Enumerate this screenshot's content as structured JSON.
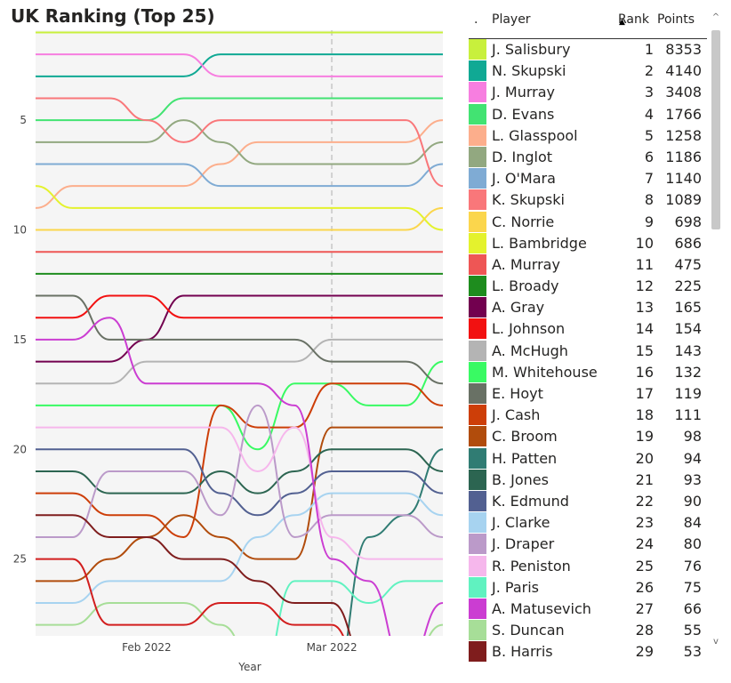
{
  "title": "UK Ranking (Top 25)",
  "chart_data": {
    "type": "line",
    "title": "UK Ranking (Top 25)",
    "xlabel": "Year",
    "ylabel": "",
    "x_tick_labels": [
      "Feb 2022",
      "Mar 2022"
    ],
    "y_ticks": [
      5,
      10,
      15,
      20,
      25
    ],
    "y_reversed": true,
    "ylim": [
      0.9,
      28.5
    ],
    "reference_line_label": "Mar 2022",
    "x": [
      0,
      1,
      2,
      3,
      4,
      5,
      6,
      7,
      8,
      9,
      10,
      11
    ],
    "series": [
      {
        "name": "J. Salisbury",
        "color": "#c8f03c",
        "values": [
          1,
          1,
          1,
          1,
          1,
          1,
          1,
          1,
          1,
          1,
          1,
          1
        ]
      },
      {
        "name": "N. Skupski",
        "color": "#10a994",
        "values": [
          3,
          3,
          3,
          3,
          3,
          2,
          2,
          2,
          2,
          2,
          2,
          2
        ]
      },
      {
        "name": "J. Murray",
        "color": "#f77ee0",
        "values": [
          2,
          2,
          2,
          2,
          2,
          3,
          3,
          3,
          3,
          3,
          3,
          3
        ]
      },
      {
        "name": "D. Evans",
        "color": "#42e372",
        "values": [
          5,
          5,
          5,
          5,
          4,
          4,
          4,
          4,
          4,
          4,
          4,
          4
        ]
      },
      {
        "name": "L. Glasspool",
        "color": "#fcae8c",
        "values": [
          9,
          8,
          8,
          8,
          8,
          7,
          6,
          6,
          6,
          6,
          6,
          5
        ]
      },
      {
        "name": "D. Inglot",
        "color": "#92a880",
        "values": [
          6,
          6,
          6,
          6,
          5,
          6,
          7,
          7,
          7,
          7,
          7,
          6
        ]
      },
      {
        "name": "J. O'Mara",
        "color": "#7fabd4",
        "values": [
          7,
          7,
          7,
          7,
          7,
          8,
          8,
          8,
          8,
          8,
          8,
          7
        ]
      },
      {
        "name": "K. Skupski",
        "color": "#f9777a",
        "values": [
          4,
          4,
          4,
          5,
          6,
          5,
          5,
          5,
          5,
          5,
          5,
          8
        ]
      },
      {
        "name": "C. Norrie",
        "color": "#fbd64c",
        "values": [
          10,
          10,
          10,
          10,
          10,
          10,
          10,
          10,
          10,
          10,
          10,
          9
        ]
      },
      {
        "name": "L. Bambridge",
        "color": "#e4f22d",
        "values": [
          8,
          9,
          9,
          9,
          9,
          9,
          9,
          9,
          9,
          9,
          9,
          10
        ]
      },
      {
        "name": "A. Murray",
        "color": "#ee5655",
        "values": [
          11,
          11,
          11,
          11,
          11,
          11,
          11,
          11,
          11,
          11,
          11,
          11
        ]
      },
      {
        "name": "L. Broady",
        "color": "#1e8c1e",
        "values": [
          12,
          12,
          12,
          12,
          12,
          12,
          12,
          12,
          12,
          12,
          12,
          12
        ]
      },
      {
        "name": "A. Gray",
        "color": "#72004f",
        "values": [
          16,
          16,
          16,
          15,
          13,
          13,
          13,
          13,
          13,
          13,
          13,
          13
        ]
      },
      {
        "name": "L. Johnson",
        "color": "#f21111",
        "values": [
          14,
          14,
          13,
          13,
          14,
          14,
          14,
          14,
          14,
          14,
          14,
          14
        ]
      },
      {
        "name": "A. McHugh",
        "color": "#b4b4b4",
        "values": [
          17,
          17,
          17,
          16,
          16,
          16,
          16,
          16,
          15,
          15,
          15,
          15
        ]
      },
      {
        "name": "M. Whitehouse",
        "color": "#39fa63",
        "values": [
          18,
          18,
          18,
          18,
          18,
          18,
          20,
          17,
          17,
          18,
          18,
          16
        ]
      },
      {
        "name": "E. Hoyt",
        "color": "#697165",
        "values": [
          13,
          13,
          15,
          15,
          15,
          15,
          15,
          15,
          16,
          16,
          16,
          17
        ]
      },
      {
        "name": "J. Cash",
        "color": "#cd3e08",
        "values": [
          22,
          22,
          23,
          23,
          24,
          18,
          19,
          19,
          17,
          17,
          17,
          18
        ]
      },
      {
        "name": "C. Broom",
        "color": "#b14c0c",
        "values": [
          26,
          26,
          25,
          24,
          23,
          24,
          25,
          25,
          19,
          19,
          19,
          19
        ]
      },
      {
        "name": "H. Patten",
        "color": "#307c73",
        "values": [
          31,
          31,
          31,
          31,
          31,
          31,
          31,
          31,
          31,
          24,
          23,
          20
        ]
      },
      {
        "name": "B. Jones",
        "color": "#2c6551",
        "values": [
          21,
          21,
          22,
          22,
          22,
          21,
          22,
          21,
          20,
          20,
          20,
          21
        ]
      },
      {
        "name": "K. Edmund",
        "color": "#526091",
        "values": [
          20,
          20,
          20,
          20,
          20,
          22,
          23,
          22,
          21,
          21,
          21,
          22
        ]
      },
      {
        "name": "J. Clarke",
        "color": "#a7d3f0",
        "values": [
          27,
          27,
          26,
          26,
          26,
          26,
          24,
          23,
          22,
          22,
          22,
          23
        ]
      },
      {
        "name": "J. Draper",
        "color": "#bb9ac9",
        "values": [
          24,
          24,
          21,
          21,
          21,
          23,
          18,
          24,
          23,
          23,
          23,
          24
        ]
      },
      {
        "name": "R. Peniston",
        "color": "#f6b7ec",
        "values": [
          19,
          19,
          19,
          19,
          19,
          19,
          21,
          19,
          24,
          25,
          25,
          25
        ]
      },
      {
        "name": "J. Paris",
        "color": "#60f2c0",
        "values": [
          31,
          31,
          31,
          31,
          31,
          31,
          31,
          26,
          26,
          27,
          26,
          26
        ]
      },
      {
        "name": "A. Matusevich",
        "color": "#cb3dd2",
        "values": [
          15,
          15,
          14,
          17,
          17,
          17,
          17,
          18,
          25,
          26,
          30,
          27
        ]
      },
      {
        "name": "S. Duncan",
        "color": "#a7de98",
        "values": [
          28,
          28,
          27,
          27,
          27,
          28,
          30,
          30,
          30,
          30,
          30,
          28
        ]
      },
      {
        "name": "B. Harris",
        "color": "#7f1d1d",
        "values": [
          23,
          23,
          24,
          24,
          25,
          25,
          26,
          27,
          27,
          30,
          30,
          30
        ]
      },
      {
        "name": "",
        "color": "#d21e1e",
        "values": [
          25,
          25,
          28,
          28,
          28,
          27,
          27,
          28,
          28,
          31,
          31,
          31
        ]
      }
    ]
  },
  "table": {
    "columns": [
      ".",
      "Player",
      "Rank",
      "Points"
    ],
    "rows": [
      {
        "color": "#c8f03c",
        "player": "J. Salisbury",
        "rank": "1",
        "points": "8353"
      },
      {
        "color": "#10a994",
        "player": "N. Skupski",
        "rank": "2",
        "points": "4140"
      },
      {
        "color": "#f77ee0",
        "player": "J. Murray",
        "rank": "3",
        "points": "3408"
      },
      {
        "color": "#42e372",
        "player": "D. Evans",
        "rank": "4",
        "points": "1766"
      },
      {
        "color": "#fcae8c",
        "player": "L. Glasspool",
        "rank": "5",
        "points": "1258"
      },
      {
        "color": "#92a880",
        "player": "D. Inglot",
        "rank": "6",
        "points": "1186"
      },
      {
        "color": "#7fabd4",
        "player": "J. O'Mara",
        "rank": "7",
        "points": "1140"
      },
      {
        "color": "#f9777a",
        "player": "K. Skupski",
        "rank": "8",
        "points": "1089"
      },
      {
        "color": "#fbd64c",
        "player": "C. Norrie",
        "rank": "9",
        "points": "698"
      },
      {
        "color": "#e4f22d",
        "player": "L. Bambridge",
        "rank": "10",
        "points": "686"
      },
      {
        "color": "#ee5655",
        "player": "A. Murray",
        "rank": "11",
        "points": "475"
      },
      {
        "color": "#1e8c1e",
        "player": "L. Broady",
        "rank": "12",
        "points": "225"
      },
      {
        "color": "#72004f",
        "player": "A. Gray",
        "rank": "13",
        "points": "165"
      },
      {
        "color": "#f21111",
        "player": "L. Johnson",
        "rank": "14",
        "points": "154"
      },
      {
        "color": "#b4b4b4",
        "player": "A. McHugh",
        "rank": "15",
        "points": "143"
      },
      {
        "color": "#39fa63",
        "player": "M. Whitehouse",
        "rank": "16",
        "points": "132"
      },
      {
        "color": "#697165",
        "player": "E. Hoyt",
        "rank": "17",
        "points": "119"
      },
      {
        "color": "#cd3e08",
        "player": "J. Cash",
        "rank": "18",
        "points": "111"
      },
      {
        "color": "#b14c0c",
        "player": "C. Broom",
        "rank": "19",
        "points": "98"
      },
      {
        "color": "#307c73",
        "player": "H. Patten",
        "rank": "20",
        "points": "94"
      },
      {
        "color": "#2c6551",
        "player": "B. Jones",
        "rank": "21",
        "points": "93"
      },
      {
        "color": "#526091",
        "player": "K. Edmund",
        "rank": "22",
        "points": "90"
      },
      {
        "color": "#a7d3f0",
        "player": "J. Clarke",
        "rank": "23",
        "points": "84"
      },
      {
        "color": "#bb9ac9",
        "player": "J. Draper",
        "rank": "24",
        "points": "80"
      },
      {
        "color": "#f6b7ec",
        "player": "R. Peniston",
        "rank": "25",
        "points": "76"
      },
      {
        "color": "#60f2c0",
        "player": "J. Paris",
        "rank": "26",
        "points": "75"
      },
      {
        "color": "#cb3dd2",
        "player": "A. Matusevich",
        "rank": "27",
        "points": "66"
      },
      {
        "color": "#a7de98",
        "player": "S. Duncan",
        "rank": "28",
        "points": "55"
      },
      {
        "color": "#7f1d1d",
        "player": "B. Harris",
        "rank": "29",
        "points": "53"
      }
    ]
  },
  "scroll": {
    "up_icon": "scroll-up-icon",
    "down_icon": "scroll-down-icon"
  }
}
